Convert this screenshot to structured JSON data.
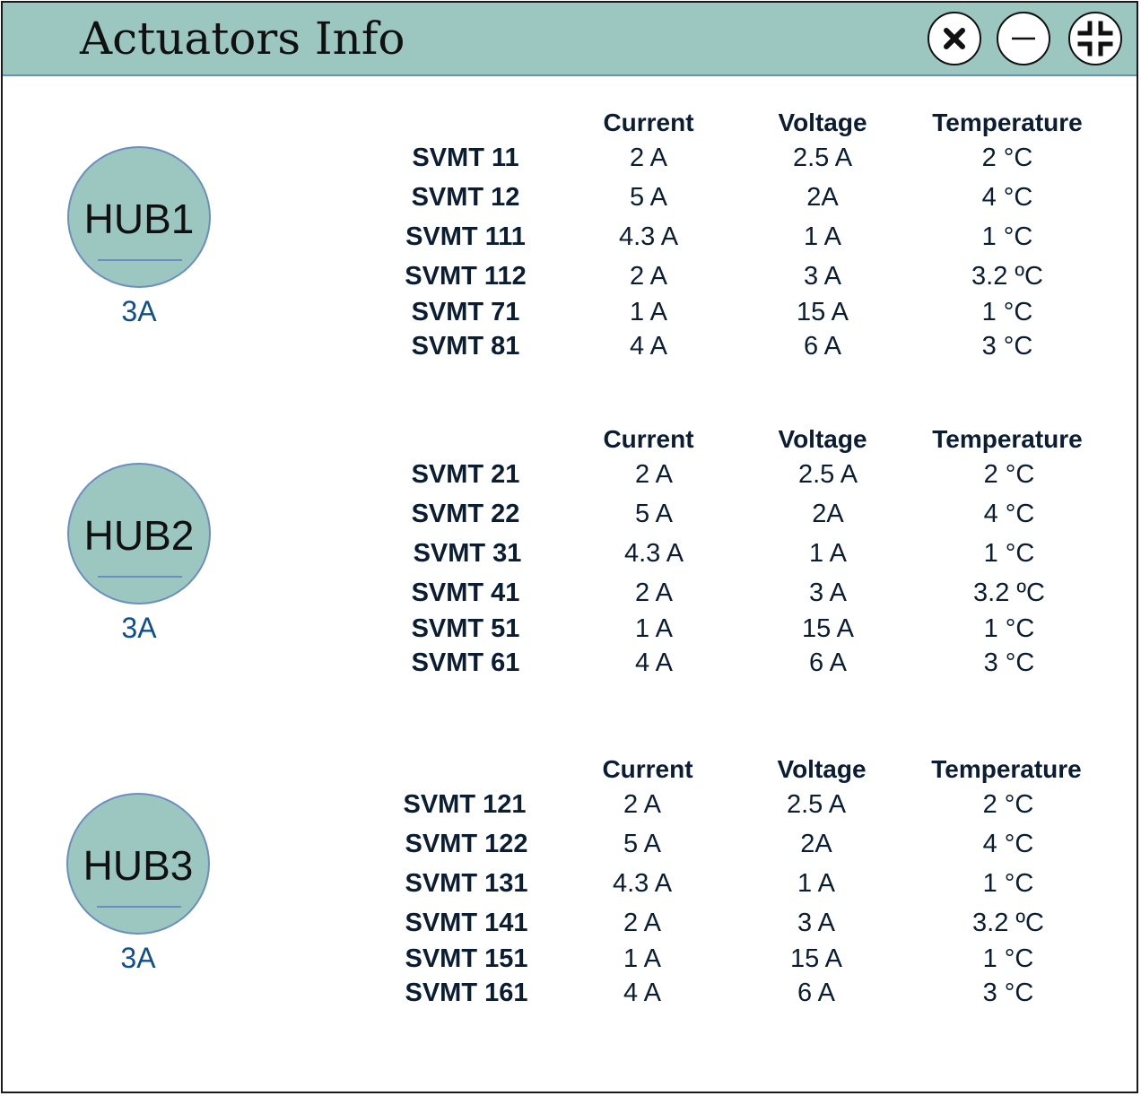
{
  "window": {
    "title": "Actuators Info"
  },
  "columns": [
    "Current",
    "Voltage",
    "Temperature"
  ],
  "hubs": [
    {
      "name": "HUB1",
      "value": "3A",
      "rows": [
        {
          "name": "SVMT 11",
          "current": "2 A",
          "voltage": "2.5 A",
          "temperature": "2 °C"
        },
        {
          "name": "SVMT 12",
          "current": "5 A",
          "voltage": "2A",
          "temperature": "4 °C"
        },
        {
          "name": "SVMT 111",
          "current": "4.3 A",
          "voltage": "1 A",
          "temperature": "1 °C"
        },
        {
          "name": "SVMT 112",
          "current": "2 A",
          "voltage": "3 A",
          "temperature": "3.2 ºC"
        },
        {
          "name": "SVMT 71",
          "current": "1 A",
          "voltage": "15 A",
          "temperature": "1 °C"
        },
        {
          "name": "SVMT 81",
          "current": "4 A",
          "voltage": "6 A",
          "temperature": "3 °C"
        }
      ]
    },
    {
      "name": "HUB2",
      "value": "3A",
      "rows": [
        {
          "name": "SVMT 21",
          "current": "2 A",
          "voltage": "2.5 A",
          "temperature": "2 °C"
        },
        {
          "name": "SVMT 22",
          "current": "5 A",
          "voltage": "2A",
          "temperature": "4 °C"
        },
        {
          "name": "SVMT 31",
          "current": "4.3 A",
          "voltage": "1 A",
          "temperature": "1 °C"
        },
        {
          "name": "SVMT 41",
          "current": "2 A",
          "voltage": "3 A",
          "temperature": "3.2 ºC"
        },
        {
          "name": "SVMT 51",
          "current": "1 A",
          "voltage": "15 A",
          "temperature": "1 °C"
        },
        {
          "name": "SVMT 61",
          "current": "4 A",
          "voltage": "6 A",
          "temperature": "3 °C"
        }
      ]
    },
    {
      "name": "HUB3",
      "value": "3A",
      "rows": [
        {
          "name": "SVMT 121",
          "current": "2 A",
          "voltage": "2.5 A",
          "temperature": "2 °C"
        },
        {
          "name": "SVMT 122",
          "current": "5 A",
          "voltage": "2A",
          "temperature": "4 °C"
        },
        {
          "name": "SVMT 131",
          "current": "4.3 A",
          "voltage": "1 A",
          "temperature": "1 °C"
        },
        {
          "name": "SVMT 141",
          "current": "2 A",
          "voltage": "3 A",
          "temperature": "3.2 ºC"
        },
        {
          "name": "SVMT 151",
          "current": "1 A",
          "voltage": "15 A",
          "temperature": "1 °C"
        },
        {
          "name": "SVMT 161",
          "current": "4 A",
          "voltage": "6 A",
          "temperature": "3 °C"
        }
      ]
    }
  ],
  "icons": {
    "close": "close-icon",
    "minimize": "minimize-icon",
    "restore": "collapse-icon"
  },
  "colors": {
    "titlebar": "#9cc7c1",
    "hub_fill": "#9cc7c1",
    "hub_border": "#6c8ebf",
    "hub_value_text": "#0e4f8c",
    "table_text": "#0b1d33"
  }
}
